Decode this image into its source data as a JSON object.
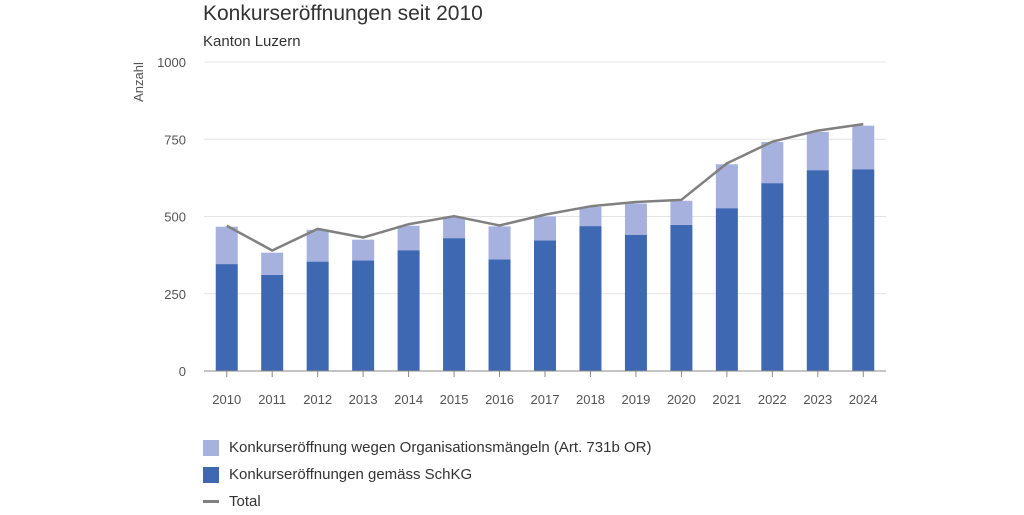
{
  "chart_data": {
    "type": "bar",
    "title": "Konkurseröffnungen seit 2010",
    "subtitle": "Kanton Luzern",
    "ylabel": "Anzahl",
    "xlabel": "",
    "ylim": [
      0,
      1000
    ],
    "yticks": [
      0,
      250,
      500,
      750,
      1000
    ],
    "categories": [
      "2010",
      "2011",
      "2012",
      "2013",
      "2014",
      "2015",
      "2016",
      "2017",
      "2018",
      "2019",
      "2020",
      "2021",
      "2022",
      "2023",
      "2024"
    ],
    "stacked": true,
    "grid": true,
    "legend_position": "bottom-left",
    "series": [
      {
        "name": "Konkurseröffnungen gemäss SchKG",
        "type": "bar",
        "color": "#3f68b3",
        "values": [
          346,
          311,
          354,
          358,
          391,
          430,
          361,
          423,
          469,
          441,
          473,
          527,
          608,
          650,
          653
        ]
      },
      {
        "name": "Konkurseröffnung wegen Organisationsmängeln (Art. 731b OR)",
        "type": "bar",
        "color": "#a6b1de",
        "values": [
          121,
          72,
          103,
          67,
          79,
          69,
          107,
          77,
          62,
          101,
          78,
          142,
          133,
          124,
          141
        ]
      },
      {
        "name": "Total",
        "type": "line",
        "color": "#808080",
        "values": [
          470,
          390,
          460,
          432,
          475,
          501,
          471,
          506,
          533,
          547,
          554,
          672,
          742,
          778,
          799
        ]
      }
    ]
  }
}
